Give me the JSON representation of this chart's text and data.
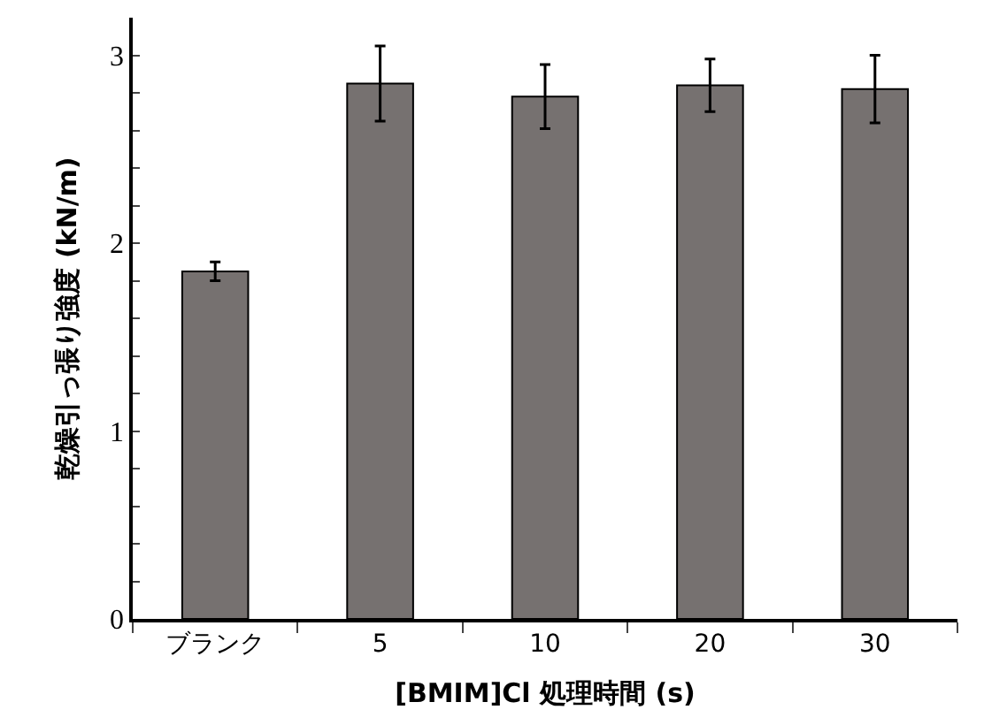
{
  "chart_data": {
    "type": "bar",
    "xlabel": "[BMIM]Cl 処理時間 (s)",
    "ylabel": "乾燥引っ張り強度 (kN/m)",
    "categories": [
      "ブランク",
      "5",
      "10",
      "20",
      "30"
    ],
    "values": [
      1.85,
      2.85,
      2.78,
      2.84,
      2.82
    ],
    "errors": [
      0.05,
      0.2,
      0.17,
      0.14,
      0.18
    ],
    "color": "#767170",
    "ylim": [
      0,
      3.2
    ],
    "yticks": [
      0,
      {
        "value": 0.2,
        "label": null
      },
      {
        "value": 0.4,
        "label": null
      },
      {
        "value": 0.6,
        "label": null
      },
      {
        "value": 0.8,
        "label": null
      },
      1,
      {
        "value": 1.2,
        "label": null
      },
      {
        "value": 1.4,
        "label": null
      },
      {
        "value": 1.6,
        "label": null
      },
      {
        "value": 1.8,
        "label": null
      },
      2,
      {
        "value": 2.2,
        "label": null
      },
      {
        "value": 2.4,
        "label": null
      },
      {
        "value": 2.6,
        "label": null
      },
      {
        "value": 2.8,
        "label": null
      },
      3
    ],
    "legend": false
  }
}
